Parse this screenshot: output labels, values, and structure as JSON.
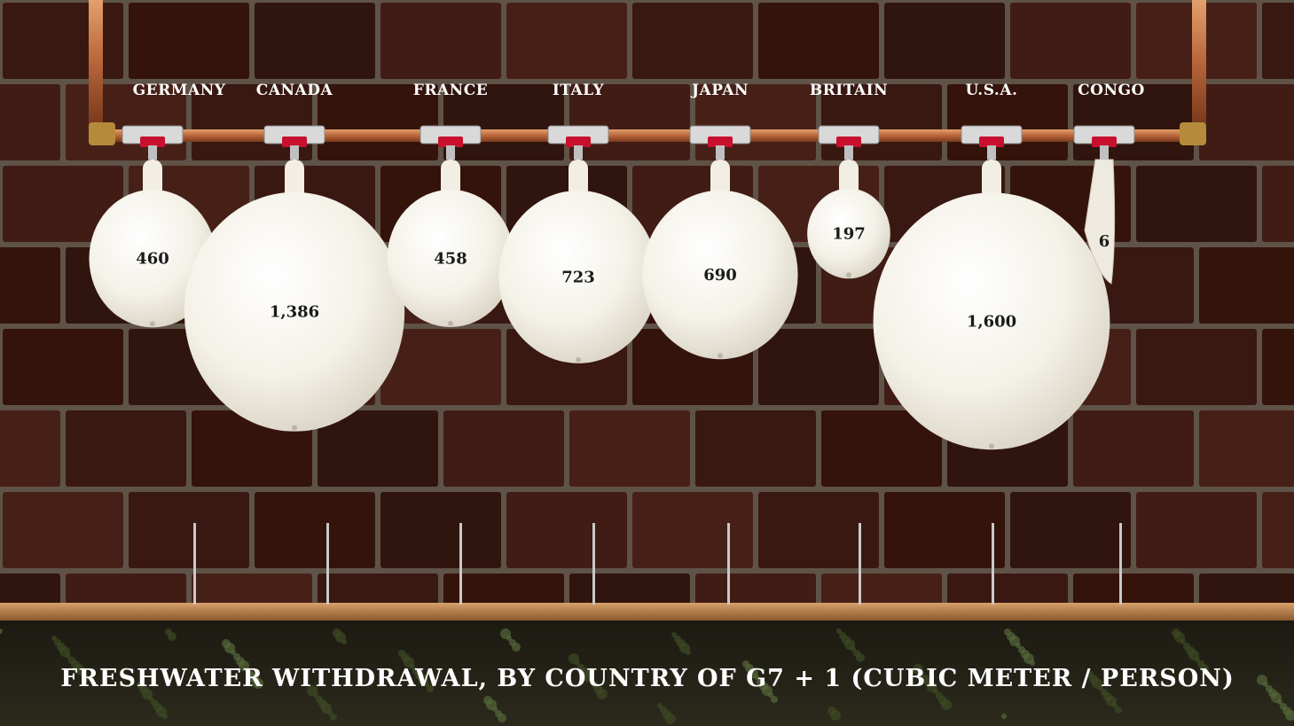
{
  "chart_data": {
    "type": "bar",
    "title": "FRESHWATER WITHDRAWAL, BY COUNTRY OF G7 + 1 (CUBIC METER / PERSON)",
    "categories": [
      "GERMANY",
      "CANADA",
      "FRANCE",
      "ITALY",
      "JAPAN",
      "BRITAIN",
      "U.S.A.",
      "CONGO"
    ],
    "values": [
      460,
      1386,
      458,
      723,
      690,
      197,
      1600,
      6
    ],
    "value_labels": [
      "460",
      "1,386",
      "458",
      "723",
      "690",
      "197",
      "1,600",
      "6"
    ],
    "representation": "water balloons hanging from a copper pipe",
    "colors": {
      "balloon": "#f6f3ea",
      "pipe": "#c2703f",
      "valve": "#c8102e",
      "brick": "#4a1f17",
      "mortar": "#7a6a5c",
      "shelf": "#b07a45"
    }
  }
}
